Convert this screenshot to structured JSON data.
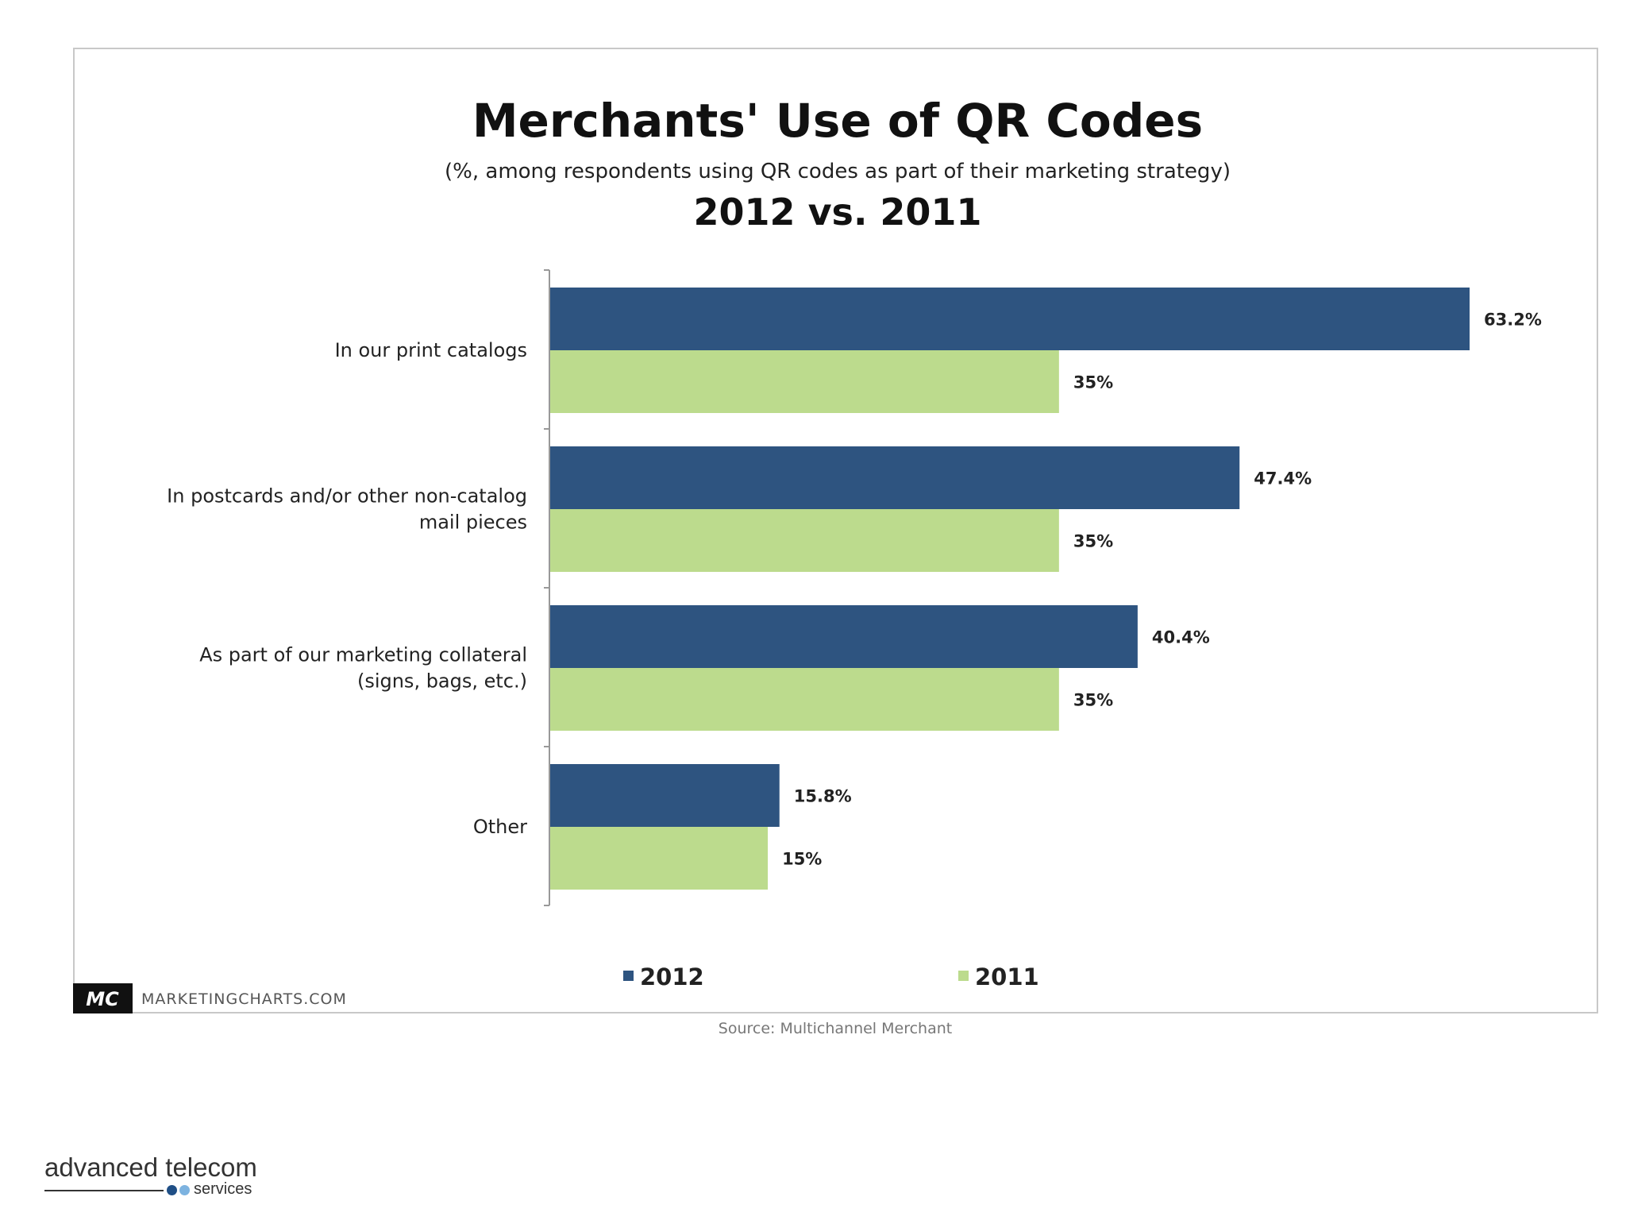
{
  "chart_data": {
    "type": "bar",
    "orientation": "horizontal",
    "title": "Merchants' Use of QR Codes",
    "subtitle": "(%, among respondents using QR codes as part of their marketing strategy)",
    "comparison": "2012 vs. 2011",
    "categories": [
      [
        "In our print catalogs"
      ],
      [
        "In postcards and/or other non-catalog",
        "mail pieces"
      ],
      [
        "As part of our marketing collateral",
        "(signs, bags, etc.)"
      ],
      [
        "Other"
      ]
    ],
    "series": [
      {
        "name": "2012",
        "color": "#2e5480",
        "values": [
          63.2,
          47.4,
          40.4,
          15.8
        ],
        "labels": [
          "63.2%",
          "47.4%",
          "40.4%",
          "15.8%"
        ]
      },
      {
        "name": "2011",
        "color": "#bcdb8d",
        "values": [
          35,
          35,
          35,
          15
        ],
        "labels": [
          "35%",
          "35%",
          "35%",
          "15%"
        ]
      }
    ],
    "xlim": [
      0,
      70
    ],
    "grid": false,
    "legend_position": "bottom"
  },
  "footer": {
    "logo_text": "MC",
    "site": "MARKETINGCHARTS.COM",
    "source": "Source: Multichannel Merchant"
  },
  "brand": {
    "name": "advanced telecom",
    "sub": "services"
  }
}
